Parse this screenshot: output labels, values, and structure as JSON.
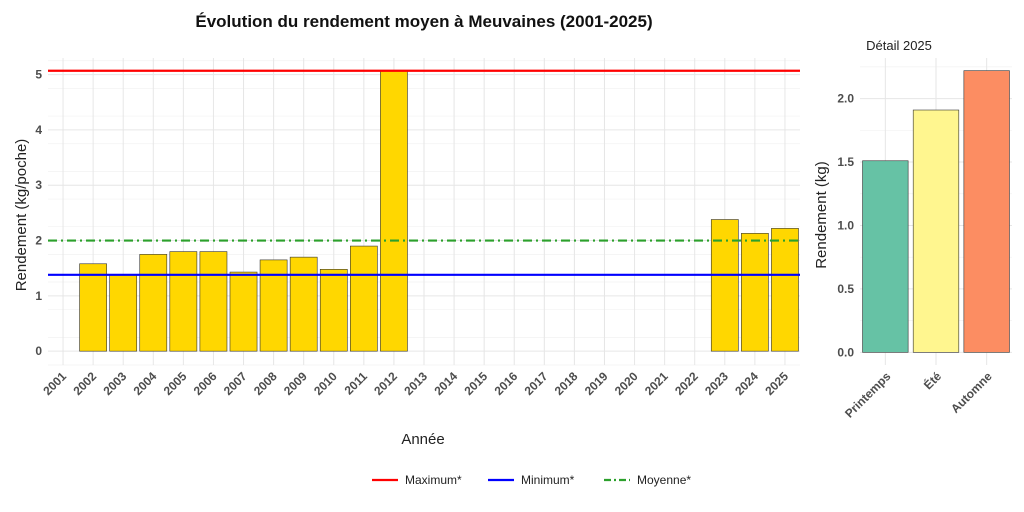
{
  "chart_data": [
    {
      "type": "bar",
      "title": "Évolution du rendement moyen à Meuvaines (2001-2025)",
      "xlabel": "Année",
      "ylabel": "Rendement (kg/poche)",
      "ylim": [
        -0.25,
        5.3
      ],
      "yticks": [
        0,
        1,
        2,
        3,
        4,
        5
      ],
      "grid": true,
      "legend_position": "bottom",
      "bar_color": "#FFD700",
      "categories": [
        "2001",
        "2002",
        "2003",
        "2004",
        "2005",
        "2006",
        "2007",
        "2008",
        "2009",
        "2010",
        "2011",
        "2012",
        "2013",
        "2014",
        "2015",
        "2016",
        "2017",
        "2018",
        "2019",
        "2020",
        "2021",
        "2022",
        "2023",
        "2024",
        "2025"
      ],
      "values": [
        null,
        1.58,
        1.38,
        1.75,
        1.8,
        1.8,
        1.43,
        1.65,
        1.7,
        1.48,
        1.9,
        5.07,
        null,
        null,
        null,
        null,
        null,
        null,
        null,
        null,
        null,
        null,
        2.38,
        2.13,
        2.22
      ],
      "reference_lines": [
        {
          "name": "Maximum*",
          "value": 5.07,
          "color": "#FF0000",
          "style": "solid"
        },
        {
          "name": "Minimum*",
          "value": 1.38,
          "color": "#0000FF",
          "style": "solid"
        },
        {
          "name": "Moyenne*",
          "value": 2.0,
          "color": "#2CA02C",
          "style": "dashdot"
        }
      ]
    },
    {
      "type": "bar",
      "title": "Détail 2025",
      "xlabel": "",
      "ylabel": "Rendement (kg)",
      "ylim": [
        -0.1,
        2.32
      ],
      "yticks": [
        "0.0",
        "0.5",
        "1.0",
        "1.5",
        "2.0"
      ],
      "grid": true,
      "categories": [
        "Printemps",
        "Été",
        "Automne"
      ],
      "values": [
        1.51,
        1.91,
        2.22
      ],
      "colors": [
        "#66C2A5",
        "#FFF68F",
        "#FC8D62"
      ]
    }
  ]
}
